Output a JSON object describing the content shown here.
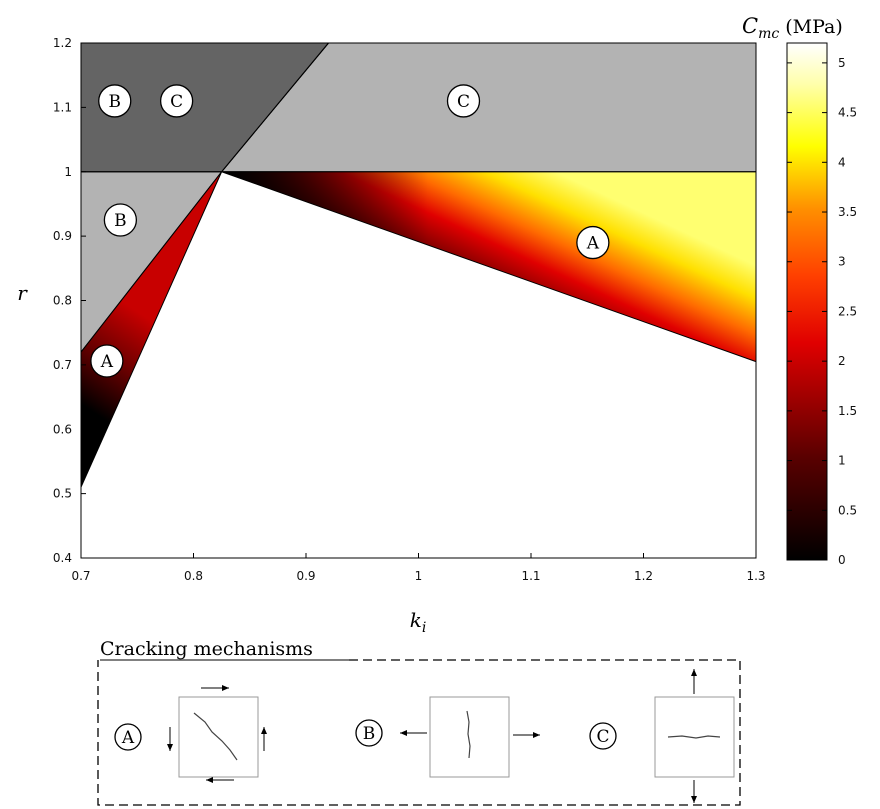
{
  "chart_data": {
    "type": "heatmap",
    "title": "",
    "xlabel": "k_i",
    "ylabel": "r",
    "xlim": [
      0.7,
      1.3
    ],
    "ylim": [
      0.4,
      1.2
    ],
    "x_ticks": [
      "0.7",
      "0.8",
      "0.9",
      "1",
      "1.1",
      "1.2",
      "1.3"
    ],
    "y_ticks": [
      "0.4",
      "0.5",
      "0.6",
      "0.7",
      "0.8",
      "0.9",
      "1",
      "1.1",
      "1.2"
    ],
    "colorbar": {
      "label": "C_mc (MPa)",
      "range": [
        0,
        5.2
      ],
      "ticks": [
        "0",
        "0.5",
        "1",
        "1.5",
        "2",
        "2.5",
        "3",
        "3.5",
        "4",
        "4.5",
        "5"
      ],
      "colormap": [
        "#000000",
        "#e00000",
        "#ff3b00",
        "#ffff00",
        "#ffffff"
      ]
    },
    "regions": [
      {
        "label": "A",
        "fill": "heat",
        "vertices_ki_r": [
          [
            0.7,
            0.72
          ],
          [
            0.825,
            1.0
          ],
          [
            0.7,
            0.51
          ]
        ],
        "cmc_range_mpa": [
          0,
          2
        ]
      },
      {
        "label": "A",
        "fill": "heat",
        "vertices_ki_r": [
          [
            0.825,
            1.0
          ],
          [
            1.3,
            1.0
          ],
          [
            1.3,
            0.705
          ]
        ],
        "cmc_range_mpa": [
          0,
          5.2
        ]
      },
      {
        "label": "B",
        "fill": "#b3b3b3",
        "vertices_ki_r": [
          [
            0.7,
            1.0
          ],
          [
            0.825,
            1.0
          ],
          [
            0.7,
            0.72
          ]
        ]
      },
      {
        "label": "C",
        "fill": "#b3b3b3",
        "vertices_ki_r": [
          [
            0.825,
            1.0
          ],
          [
            1.3,
            1.0
          ],
          [
            1.3,
            1.2
          ],
          [
            0.92,
            1.2
          ]
        ]
      },
      {
        "label": "B C",
        "fill": "#646464",
        "vertices_ki_r": [
          [
            0.7,
            1.0
          ],
          [
            0.825,
            1.0
          ],
          [
            0.92,
            1.2
          ],
          [
            0.7,
            1.2
          ]
        ]
      }
    ],
    "region_markers": [
      {
        "label": "B",
        "ki": 0.73,
        "r": 1.11
      },
      {
        "label": "C",
        "ki": 0.785,
        "r": 1.11
      },
      {
        "label": "C",
        "ki": 1.04,
        "r": 1.11
      },
      {
        "label": "B",
        "ki": 0.735,
        "r": 0.925
      },
      {
        "label": "A",
        "ki": 1.155,
        "r": 0.89
      },
      {
        "label": "A",
        "ki": 0.723,
        "r": 0.706
      }
    ]
  },
  "legend": {
    "title": "Cracking mechanisms",
    "items": [
      {
        "label": "A",
        "crack": "diagonal",
        "arrows": "shear"
      },
      {
        "label": "B",
        "crack": "vertical",
        "arrows": "horizontal-tension"
      },
      {
        "label": "C",
        "crack": "horizontal",
        "arrows": "vertical-tension"
      }
    ]
  }
}
